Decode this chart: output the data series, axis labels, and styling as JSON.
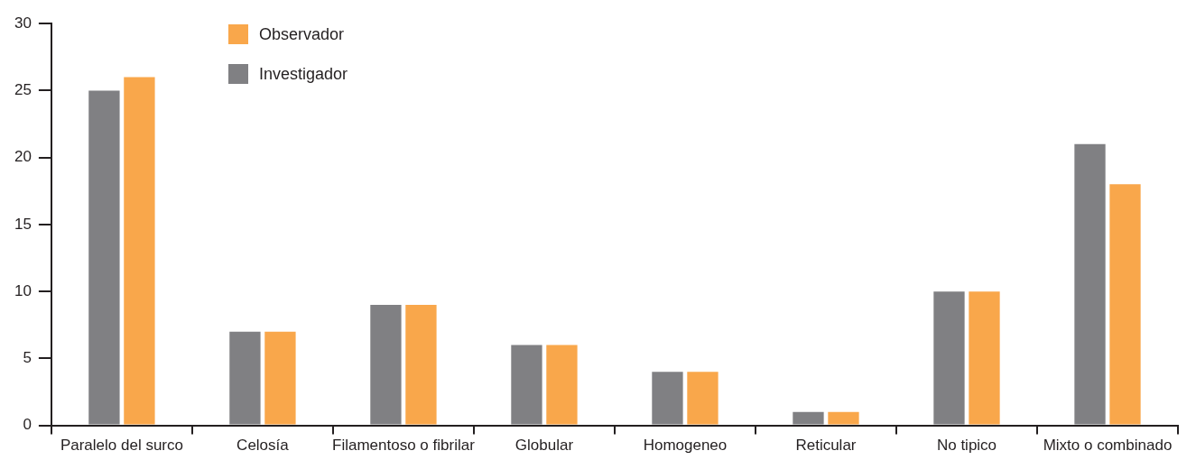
{
  "chart_data": {
    "type": "bar",
    "categories": [
      "Paralelo del surco",
      "Celosía",
      "Filamentoso o fibrilar",
      "Globular",
      "Homogeneo",
      "Reticular",
      "No tipico",
      "Mixto o combinado"
    ],
    "series": [
      {
        "name": "Investigador",
        "color": "#808083",
        "values": [
          25,
          7,
          9,
          6,
          4,
          1,
          10,
          21
        ]
      },
      {
        "name": "Observador",
        "color": "#f9a74b",
        "values": [
          26,
          7,
          9,
          6,
          4,
          1,
          10,
          18
        ]
      }
    ],
    "ylim": [
      0,
      30
    ],
    "yticks": [
      0,
      5,
      10,
      15,
      20,
      25,
      30
    ],
    "grid": false,
    "legend": "top left"
  }
}
